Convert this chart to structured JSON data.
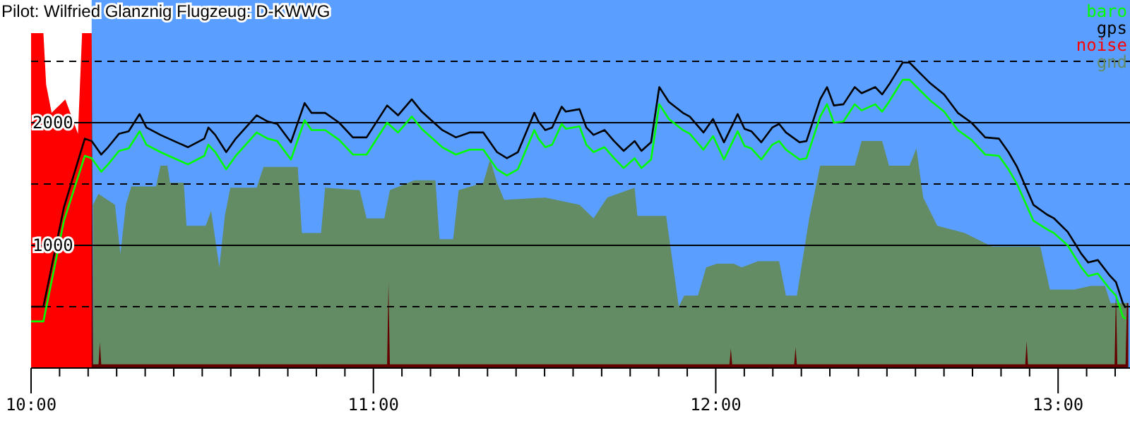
{
  "chart_data": {
    "type": "line",
    "title": "Pilot: Wilfried Glanznig Flugzeug: D-KWWG",
    "xlim": [
      10,
      13.21
    ],
    "ylim": [
      0,
      3000
    ],
    "xticks": [
      {
        "value": 10,
        "label": "10:00"
      },
      {
        "value": 10.0833,
        "label": null
      },
      {
        "value": 10.1667,
        "label": null
      },
      {
        "value": 10.25,
        "label": null
      },
      {
        "value": 10.3333,
        "label": null
      },
      {
        "value": 10.4167,
        "label": null
      },
      {
        "value": 10.5,
        "label": null
      },
      {
        "value": 10.5833,
        "label": null
      },
      {
        "value": 10.6667,
        "label": null
      },
      {
        "value": 10.75,
        "label": null
      },
      {
        "value": 10.8333,
        "label": null
      },
      {
        "value": 10.9167,
        "label": null
      },
      {
        "value": 11,
        "label": "11:00"
      },
      {
        "value": 11.0833,
        "label": null
      },
      {
        "value": 11.1667,
        "label": null
      },
      {
        "value": 11.25,
        "label": null
      },
      {
        "value": 11.3333,
        "label": null
      },
      {
        "value": 11.4167,
        "label": null
      },
      {
        "value": 11.5,
        "label": null
      },
      {
        "value": 11.5833,
        "label": null
      },
      {
        "value": 11.6667,
        "label": null
      },
      {
        "value": 11.75,
        "label": null
      },
      {
        "value": 11.8333,
        "label": null
      },
      {
        "value": 11.9167,
        "label": null
      },
      {
        "value": 12,
        "label": "12:00"
      },
      {
        "value": 12.0833,
        "label": null
      },
      {
        "value": 12.1667,
        "label": null
      },
      {
        "value": 12.25,
        "label": null
      },
      {
        "value": 12.3333,
        "label": null
      },
      {
        "value": 12.4167,
        "label": null
      },
      {
        "value": 12.5,
        "label": null
      },
      {
        "value": 12.5833,
        "label": null
      },
      {
        "value": 12.6667,
        "label": null
      },
      {
        "value": 12.75,
        "label": null
      },
      {
        "value": 12.8333,
        "label": null
      },
      {
        "value": 12.9167,
        "label": null
      },
      {
        "value": 13,
        "label": "13:00"
      },
      {
        "value": 13.0833,
        "label": null
      },
      {
        "value": 13.1667,
        "label": null
      }
    ],
    "yticks": [
      {
        "value": 500,
        "label": null
      },
      1000,
      {
        "value": 1500,
        "label": null
      },
      2000,
      {
        "value": 2500,
        "label": null
      }
    ],
    "grid": "y",
    "legend": "top right",
    "bands": [
      {
        "axis": "x",
        "from": 10.177,
        "to": 13.21,
        "color": "#5a9fff"
      }
    ],
    "series": [
      {
        "name": "gnd",
        "type": "area",
        "color": "#648c64",
        "x": [
          10.181,
          10.197,
          10.245,
          10.261,
          10.277,
          10.293,
          10.365,
          10.378,
          10.398,
          10.406,
          10.446,
          10.454,
          10.51,
          10.526,
          10.55,
          10.566,
          10.582,
          10.659,
          10.679,
          10.779,
          10.791,
          10.847,
          10.859,
          10.96,
          10.98,
          11.032,
          11.048,
          11.12,
          11.181,
          11.193,
          11.233,
          11.249,
          11.321,
          11.341,
          11.361,
          11.382,
          11.502,
          11.602,
          11.643,
          11.683,
          11.763,
          11.771,
          11.855,
          11.876,
          11.892,
          11.908,
          11.948,
          11.972,
          12.004,
          12.052,
          12.076,
          12.124,
          12.185,
          12.205,
          12.237,
          12.253,
          12.273,
          12.305,
          12.406,
          12.426,
          12.486,
          12.506,
          12.566,
          12.586,
          12.606,
          12.647,
          12.727,
          12.807,
          12.948,
          12.976,
          13.008,
          13.048,
          13.096,
          13.137,
          13.153,
          13.205
        ],
        "values": [
          1330,
          1420,
          1330,
          930,
          1330,
          1480,
          1480,
          1650,
          1650,
          1510,
          1510,
          1160,
          1160,
          1280,
          820,
          1240,
          1470,
          1470,
          1640,
          1640,
          1100,
          1100,
          1470,
          1450,
          1220,
          1220,
          1450,
          1530,
          1530,
          1050,
          1050,
          1450,
          1510,
          1700,
          1510,
          1370,
          1390,
          1330,
          1220,
          1390,
          1470,
          1240,
          1240,
          820,
          500,
          590,
          590,
          820,
          850,
          850,
          820,
          870,
          870,
          590,
          590,
          870,
          1220,
          1650,
          1650,
          1850,
          1850,
          1650,
          1650,
          1790,
          1390,
          1160,
          1100,
          990,
          990,
          640,
          640,
          640,
          670,
          670,
          530,
          530
        ]
      },
      {
        "name": "noise",
        "type": "area",
        "color": "#ff0000",
        "x": [
          10,
          10.036,
          10.044,
          10.06,
          10.1,
          10.137,
          10.149,
          10.177,
          10.181,
          10.197,
          10.201,
          10.205,
          11.04,
          11.044,
          11.048,
          12.04,
          12.044,
          12.048,
          12.229,
          12.233,
          12.237,
          12.904,
          12.908,
          12.912,
          13.165,
          13.169,
          13.173,
          13.197,
          13.201,
          13.205
        ],
        "values": [
          2730,
          2730,
          2310,
          2080,
          2190,
          1910,
          2730,
          2730,
          30,
          30,
          210,
          30,
          30,
          690,
          30,
          30,
          160,
          30,
          30,
          170,
          30,
          30,
          220,
          30,
          30,
          640,
          30,
          30,
          530,
          530
        ]
      },
      {
        "name": "gps",
        "color": "#000000",
        "x": [
          10,
          10.036,
          10.096,
          10.157,
          10.177,
          10.205,
          10.225,
          10.257,
          10.285,
          10.317,
          10.337,
          10.378,
          10.418,
          10.458,
          10.506,
          10.518,
          10.538,
          10.57,
          10.598,
          10.659,
          10.691,
          10.719,
          10.759,
          10.799,
          10.819,
          10.859,
          10.9,
          10.94,
          10.98,
          11.04,
          11.072,
          11.112,
          11.141,
          11.201,
          11.241,
          11.281,
          11.321,
          11.361,
          11.39,
          11.422,
          11.47,
          11.482,
          11.502,
          11.522,
          11.55,
          11.562,
          11.602,
          11.622,
          11.643,
          11.675,
          11.703,
          11.731,
          11.763,
          11.783,
          11.811,
          11.835,
          11.863,
          11.904,
          11.924,
          11.964,
          11.992,
          12.024,
          12.064,
          12.084,
          12.104,
          12.133,
          12.165,
          12.185,
          12.205,
          12.245,
          12.265,
          12.305,
          12.325,
          12.345,
          12.373,
          12.406,
          12.426,
          12.466,
          12.486,
          12.506,
          12.546,
          12.566,
          12.598,
          12.627,
          12.667,
          12.707,
          12.747,
          12.787,
          12.827,
          12.855,
          12.88,
          12.928,
          12.968,
          12.988,
          13.028,
          13.068,
          13.088,
          13.116,
          13.149,
          13.169,
          13.189,
          13.197
        ],
        "values": [
          500,
          500,
          1310,
          1870,
          1850,
          1740,
          1800,
          1910,
          1930,
          2070,
          1960,
          1900,
          1850,
          1800,
          1870,
          1960,
          1900,
          1760,
          1870,
          2060,
          2010,
          1990,
          1840,
          2160,
          2080,
          2080,
          2000,
          1880,
          1880,
          2140,
          2060,
          2190,
          2090,
          1940,
          1880,
          1920,
          1920,
          1760,
          1710,
          1760,
          2080,
          2010,
          1940,
          1960,
          2130,
          2090,
          2110,
          1960,
          1900,
          1940,
          1850,
          1770,
          1850,
          1770,
          1840,
          2290,
          2170,
          2080,
          2050,
          1920,
          2030,
          1840,
          2070,
          1950,
          1930,
          1840,
          1960,
          1990,
          1920,
          1840,
          1850,
          2190,
          2290,
          2140,
          2150,
          2290,
          2240,
          2290,
          2230,
          2310,
          2490,
          2490,
          2400,
          2320,
          2230,
          2080,
          2000,
          1880,
          1870,
          1760,
          1640,
          1330,
          1250,
          1220,
          1110,
          930,
          860,
          880,
          760,
          700,
          530,
          490
        ]
      },
      {
        "name": "baro",
        "color": "#00ff00",
        "x": [
          10,
          10.036,
          10.096,
          10.157,
          10.177,
          10.205,
          10.225,
          10.257,
          10.285,
          10.317,
          10.337,
          10.378,
          10.418,
          10.458,
          10.506,
          10.518,
          10.538,
          10.57,
          10.598,
          10.659,
          10.691,
          10.719,
          10.759,
          10.799,
          10.819,
          10.859,
          10.9,
          10.94,
          10.98,
          11.04,
          11.072,
          11.112,
          11.141,
          11.201,
          11.241,
          11.281,
          11.321,
          11.361,
          11.39,
          11.422,
          11.47,
          11.482,
          11.502,
          11.522,
          11.55,
          11.562,
          11.602,
          11.622,
          11.643,
          11.675,
          11.703,
          11.731,
          11.763,
          11.783,
          11.811,
          11.835,
          11.863,
          11.904,
          11.924,
          11.964,
          11.992,
          12.024,
          12.064,
          12.084,
          12.104,
          12.133,
          12.165,
          12.185,
          12.205,
          12.245,
          12.265,
          12.305,
          12.325,
          12.345,
          12.373,
          12.406,
          12.426,
          12.466,
          12.486,
          12.506,
          12.546,
          12.566,
          12.598,
          12.627,
          12.667,
          12.707,
          12.747,
          12.787,
          12.827,
          12.855,
          12.88,
          12.928,
          12.968,
          12.988,
          13.028,
          13.068,
          13.088,
          13.116,
          13.149,
          13.169,
          13.189,
          13.197
        ],
        "values": [
          380,
          380,
          1200,
          1730,
          1710,
          1600,
          1660,
          1770,
          1790,
          1930,
          1820,
          1760,
          1710,
          1660,
          1730,
          1820,
          1760,
          1620,
          1730,
          1920,
          1870,
          1850,
          1700,
          2020,
          1940,
          1940,
          1860,
          1740,
          1740,
          2000,
          1920,
          2050,
          1950,
          1800,
          1740,
          1780,
          1780,
          1620,
          1570,
          1620,
          1940,
          1870,
          1800,
          1820,
          1990,
          1950,
          1970,
          1820,
          1760,
          1800,
          1710,
          1630,
          1710,
          1630,
          1700,
          2150,
          2030,
          1940,
          1910,
          1780,
          1890,
          1700,
          1930,
          1810,
          1790,
          1700,
          1820,
          1850,
          1780,
          1700,
          1710,
          2050,
          2150,
          2000,
          2010,
          2150,
          2100,
          2150,
          2090,
          2170,
          2350,
          2350,
          2260,
          2180,
          2090,
          1940,
          1860,
          1740,
          1730,
          1620,
          1500,
          1200,
          1130,
          1100,
          1000,
          820,
          750,
          770,
          650,
          590,
          420,
          400
        ]
      }
    ]
  }
}
